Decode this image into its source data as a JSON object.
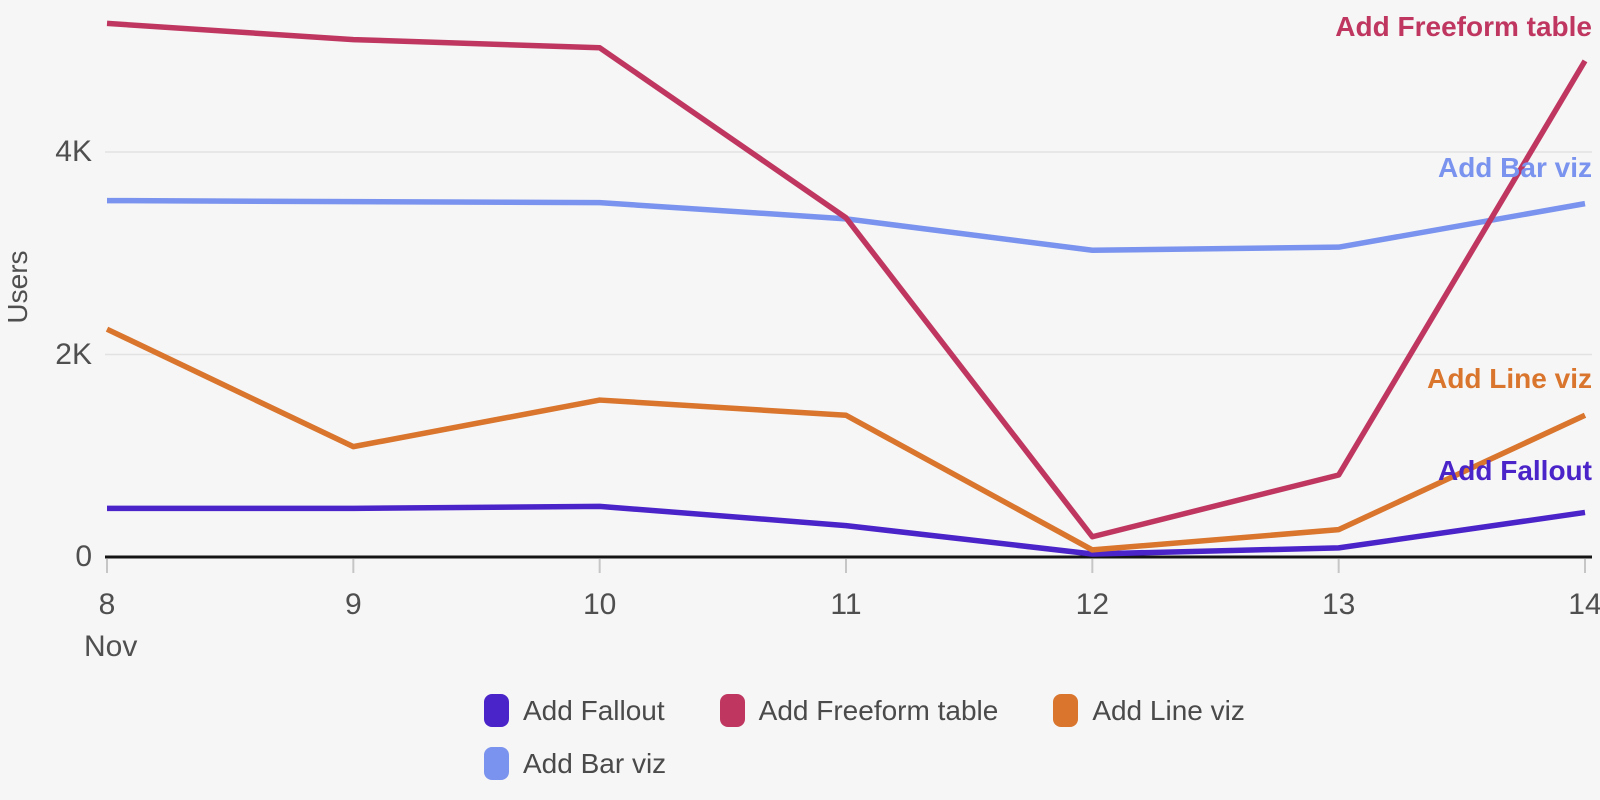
{
  "chart_data": {
    "type": "line",
    "title": "",
    "ylabel": "Users",
    "x_axis_unit": "Nov",
    "x": [
      8,
      9,
      10,
      11,
      12,
      13,
      14
    ],
    "x_tick_labels": [
      "8",
      "9",
      "10",
      "11",
      "12",
      "13",
      "14"
    ],
    "y_ticks": [
      {
        "value": 0,
        "label": "0"
      },
      {
        "value": 2000,
        "label": "2K"
      },
      {
        "value": 4000,
        "label": "4K"
      }
    ],
    "ylim": [
      0,
      5500
    ],
    "grid": "horizontal",
    "legend_position": "bottom",
    "series": [
      {
        "name": "Add Fallout",
        "color": "#4a23c9",
        "values": [
          480,
          480,
          500,
          310,
          30,
          90,
          440
        ],
        "end_label_top": 456
      },
      {
        "name": "Add Freeform table",
        "color": "#bf3760",
        "values": [
          5270,
          5110,
          5030,
          3350,
          200,
          810,
          4900
        ],
        "end_label_top": 12
      },
      {
        "name": "Add Line viz",
        "color": "#d9752d",
        "values": [
          2250,
          1090,
          1550,
          1400,
          70,
          270,
          1400
        ],
        "end_label_top": 364
      },
      {
        "name": "Add Bar viz",
        "color": "#7a93ee",
        "values": [
          3520,
          3510,
          3500,
          3340,
          3030,
          3060,
          3490
        ],
        "end_label_top": 153
      }
    ],
    "draw_order": [
      3,
      0,
      2,
      1
    ],
    "colors": {
      "background": "#f6f6f6",
      "gridline": "#e2e2e2",
      "axis_line": "#151515",
      "tick_mark": "#c6c6c6",
      "axis_text": "#4f4f4f",
      "legend_text": "#4a4a4a"
    }
  }
}
